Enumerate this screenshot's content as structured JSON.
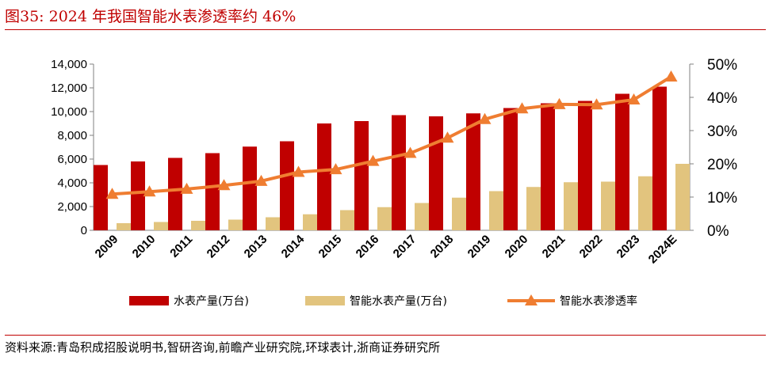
{
  "header": {
    "title": "图35:   2024 年我国智能水表渗透率约 46%"
  },
  "footer": {
    "source": "资料来源:青岛积成招股说明书,智研咨询,前瞻产业研究院,环球表计,浙商证券研究所"
  },
  "chart_data": {
    "type": "bar",
    "categories": [
      "2009",
      "2010",
      "2011",
      "2012",
      "2013",
      "2014",
      "2015",
      "2016",
      "2017",
      "2018",
      "2019",
      "2020",
      "2021",
      "2022",
      "2023",
      "2024E"
    ],
    "series": [
      {
        "name": "水表产量(万台)",
        "type": "bar",
        "axis": "left",
        "color": "#c00000",
        "values": [
          5500,
          5800,
          6100,
          6500,
          7050,
          7500,
          9000,
          9200,
          9700,
          9600,
          9850,
          10300,
          10700,
          10900,
          11500,
          12100
        ]
      },
      {
        "name": "智能水表产量(万台)",
        "type": "bar",
        "axis": "left",
        "color": "#e2c47e",
        "values": [
          600,
          700,
          800,
          900,
          1100,
          1350,
          1700,
          1950,
          2300,
          2750,
          3300,
          3650,
          4050,
          4100,
          4550,
          5600
        ]
      },
      {
        "name": "智能水表渗透率",
        "type": "line",
        "axis": "right",
        "color": "#ef7d31",
        "values": [
          10.9,
          11.6,
          12.4,
          13.5,
          14.8,
          17.5,
          18.3,
          20.8,
          23.2,
          27.8,
          33.4,
          36.6,
          37.9,
          37.8,
          39.3,
          46.2
        ]
      }
    ],
    "left_axis": {
      "min": 0,
      "max": 14000,
      "step": 2000,
      "tick_labels": [
        "0",
        "2,000",
        "4,000",
        "6,000",
        "8,000",
        "10,000",
        "12,000",
        "14,000"
      ]
    },
    "right_axis": {
      "min": 0,
      "max": 50,
      "step": 10,
      "tick_labels": [
        "0%",
        "10%",
        "20%",
        "30%",
        "40%",
        "50%"
      ]
    },
    "grid": false,
    "legend_position": "bottom"
  }
}
